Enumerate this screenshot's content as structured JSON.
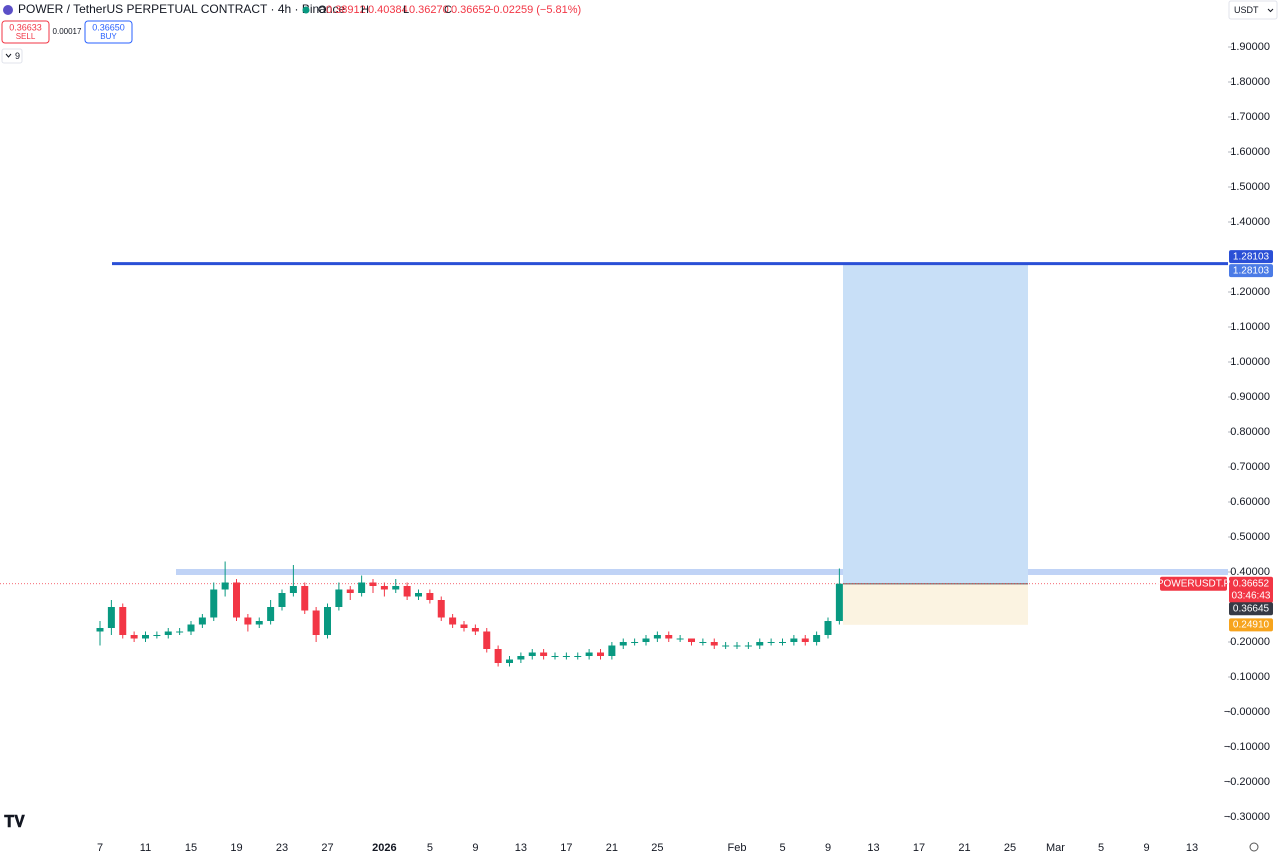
{
  "header": {
    "symbol": "POWER / TetherUS PERPETUAL CONTRACT · 4h · Binance",
    "o_label": "O",
    "o": "0.38912",
    "h_label": "H",
    "h": "0.40384",
    "l_label": "L",
    "l": "0.36270",
    "c_label": "C",
    "c": "0.36652",
    "change": "−0.02259 (−5.81%)",
    "sell_price": "0.36633",
    "sell": "SELL",
    "spread": "0.00017",
    "buy_price": "0.36650",
    "buy": "BUY",
    "indicators": "9",
    "currency": "USDT"
  },
  "chart_data": {
    "type": "candlestick",
    "up_color": "#089981",
    "down_color": "#f23645",
    "x": [
      "2025-12-07",
      "2025-12-08",
      "2025-12-09",
      "2025-12-10",
      "2025-12-11",
      "2025-12-12",
      "2025-12-13",
      "2025-12-14",
      "2025-12-15",
      "2025-12-16",
      "2025-12-17",
      "2025-12-18",
      "2025-12-19",
      "2025-12-20",
      "2025-12-21",
      "2025-12-22",
      "2025-12-23",
      "2025-12-24",
      "2025-12-25",
      "2025-12-26",
      "2025-12-27",
      "2025-12-28",
      "2025-12-29",
      "2025-12-30",
      "2025-12-31",
      "2026-01-01",
      "2026-01-02",
      "2026-01-03",
      "2026-01-04",
      "2026-01-05",
      "2026-01-06",
      "2026-01-07",
      "2026-01-08",
      "2026-01-09",
      "2026-01-10",
      "2026-01-11",
      "2026-01-12",
      "2026-01-13",
      "2026-01-14",
      "2026-01-15",
      "2026-01-16",
      "2026-01-17",
      "2026-01-18",
      "2026-01-19",
      "2026-01-20",
      "2026-01-21",
      "2026-01-22",
      "2026-01-23",
      "2026-01-24",
      "2026-01-25",
      "2026-01-26",
      "2026-01-27",
      "2026-01-28",
      "2026-01-29",
      "2026-01-30",
      "2026-01-31",
      "2026-02-01",
      "2026-02-02",
      "2026-02-03",
      "2026-02-04",
      "2026-02-05",
      "2026-02-06",
      "2026-02-07",
      "2026-02-08",
      "2026-02-09",
      "2026-02-10"
    ],
    "open": [
      0.23,
      0.24,
      0.3,
      0.22,
      0.21,
      0.22,
      0.22,
      0.23,
      0.23,
      0.25,
      0.27,
      0.35,
      0.37,
      0.27,
      0.25,
      0.26,
      0.3,
      0.34,
      0.36,
      0.29,
      0.22,
      0.3,
      0.35,
      0.34,
      0.37,
      0.36,
      0.35,
      0.36,
      0.33,
      0.34,
      0.32,
      0.27,
      0.25,
      0.24,
      0.23,
      0.18,
      0.14,
      0.15,
      0.16,
      0.17,
      0.16,
      0.16,
      0.16,
      0.16,
      0.17,
      0.16,
      0.19,
      0.2,
      0.2,
      0.21,
      0.22,
      0.21,
      0.21,
      0.2,
      0.2,
      0.19,
      0.19,
      0.19,
      0.19,
      0.2,
      0.2,
      0.2,
      0.21,
      0.2,
      0.22,
      0.26
    ],
    "high": [
      0.26,
      0.32,
      0.31,
      0.23,
      0.23,
      0.23,
      0.24,
      0.24,
      0.26,
      0.28,
      0.37,
      0.43,
      0.38,
      0.28,
      0.27,
      0.32,
      0.35,
      0.42,
      0.37,
      0.3,
      0.31,
      0.37,
      0.36,
      0.39,
      0.38,
      0.37,
      0.38,
      0.37,
      0.35,
      0.35,
      0.33,
      0.28,
      0.26,
      0.25,
      0.24,
      0.19,
      0.16,
      0.17,
      0.18,
      0.18,
      0.17,
      0.17,
      0.17,
      0.18,
      0.18,
      0.2,
      0.21,
      0.21,
      0.22,
      0.23,
      0.23,
      0.22,
      0.21,
      0.21,
      0.21,
      0.2,
      0.2,
      0.2,
      0.21,
      0.21,
      0.21,
      0.22,
      0.22,
      0.23,
      0.27,
      0.41
    ],
    "low": [
      0.19,
      0.22,
      0.21,
      0.2,
      0.2,
      0.21,
      0.21,
      0.22,
      0.22,
      0.24,
      0.26,
      0.33,
      0.26,
      0.23,
      0.24,
      0.25,
      0.29,
      0.33,
      0.28,
      0.2,
      0.21,
      0.29,
      0.32,
      0.33,
      0.34,
      0.33,
      0.34,
      0.32,
      0.32,
      0.31,
      0.26,
      0.24,
      0.23,
      0.22,
      0.17,
      0.13,
      0.13,
      0.14,
      0.15,
      0.15,
      0.15,
      0.15,
      0.15,
      0.15,
      0.15,
      0.15,
      0.18,
      0.19,
      0.19,
      0.2,
      0.2,
      0.2,
      0.19,
      0.19,
      0.18,
      0.18,
      0.18,
      0.18,
      0.18,
      0.19,
      0.19,
      0.19,
      0.19,
      0.19,
      0.21,
      0.25
    ],
    "close": [
      0.24,
      0.3,
      0.22,
      0.21,
      0.22,
      0.22,
      0.23,
      0.23,
      0.25,
      0.27,
      0.35,
      0.37,
      0.27,
      0.25,
      0.26,
      0.3,
      0.34,
      0.36,
      0.29,
      0.22,
      0.3,
      0.35,
      0.34,
      0.37,
      0.36,
      0.35,
      0.36,
      0.33,
      0.34,
      0.32,
      0.27,
      0.25,
      0.24,
      0.23,
      0.18,
      0.14,
      0.15,
      0.16,
      0.17,
      0.16,
      0.16,
      0.16,
      0.16,
      0.17,
      0.16,
      0.19,
      0.2,
      0.2,
      0.21,
      0.22,
      0.21,
      0.21,
      0.2,
      0.2,
      0.19,
      0.19,
      0.19,
      0.19,
      0.2,
      0.2,
      0.2,
      0.21,
      0.2,
      0.22,
      0.26,
      0.36652
    ],
    "ylim": [
      -0.3,
      1.9
    ],
    "yticks": [
      {
        "value": 1.9,
        "label": "1.90000"
      },
      {
        "value": 1.8,
        "label": "1.80000"
      },
      {
        "value": 1.7,
        "label": "1.70000"
      },
      {
        "value": 1.6,
        "label": "1.60000"
      },
      {
        "value": 1.5,
        "label": "1.50000"
      },
      {
        "value": 1.4,
        "label": "1.40000"
      },
      {
        "value": 1.2,
        "label": "1.20000"
      },
      {
        "value": 1.1,
        "label": "1.10000"
      },
      {
        "value": 1.0,
        "label": "1.00000"
      },
      {
        "value": 0.9,
        "label": "0.90000"
      },
      {
        "value": 0.8,
        "label": "0.80000"
      },
      {
        "value": 0.7,
        "label": "0.70000"
      },
      {
        "value": 0.6,
        "label": "0.60000"
      },
      {
        "value": 0.5,
        "label": "0.50000"
      },
      {
        "value": 0.4,
        "label": "0.40000"
      },
      {
        "value": 0.2,
        "label": "0.20000"
      },
      {
        "value": 0.1,
        "label": "0.10000"
      },
      {
        "value": 0,
        "label": "−0.00000"
      },
      {
        "value": -0.1,
        "label": "−0.10000"
      },
      {
        "value": -0.2,
        "label": "−0.20000"
      },
      {
        "value": -0.3,
        "label": "−0.30000"
      }
    ],
    "xticks": [
      {
        "value": "2025-12-07",
        "label": "7"
      },
      {
        "value": "2025-12-11",
        "label": "11"
      },
      {
        "value": "2025-12-15",
        "label": "15"
      },
      {
        "value": "2025-12-19",
        "label": "19"
      },
      {
        "value": "2025-12-23",
        "label": "23"
      },
      {
        "value": "2025-12-27",
        "label": "27"
      },
      {
        "value": "2026-01-01",
        "label": "2026"
      },
      {
        "value": "2026-01-05",
        "label": "5"
      },
      {
        "value": "2026-01-09",
        "label": "9"
      },
      {
        "value": "2026-01-13",
        "label": "13"
      },
      {
        "value": "2026-01-17",
        "label": "17"
      },
      {
        "value": "2026-01-21",
        "label": "21"
      },
      {
        "value": "2026-01-25",
        "label": "25"
      },
      {
        "value": "2026-02-01",
        "label": "Feb"
      },
      {
        "value": "2026-02-05",
        "label": "5"
      },
      {
        "value": "2026-02-09",
        "label": "9"
      },
      {
        "value": "2026-02-13",
        "label": "13"
      },
      {
        "value": "2026-02-17",
        "label": "17"
      },
      {
        "value": "2026-02-21",
        "label": "21"
      },
      {
        "value": "2026-02-25",
        "label": "25"
      },
      {
        "value": "2026-03-01",
        "label": "Mar"
      },
      {
        "value": "2026-03-05",
        "label": "5"
      },
      {
        "value": "2026-03-09",
        "label": "9"
      },
      {
        "value": "2026-03-13",
        "label": "13"
      }
    ],
    "target": 1.28103,
    "last_price": 0.36652,
    "countdown": "03:46:43",
    "symbol_label": "POWERUSDT.P",
    "entry": 0.36645,
    "stop": {
      "value": 0.2491,
      "label": "0.24910"
    }
  }
}
